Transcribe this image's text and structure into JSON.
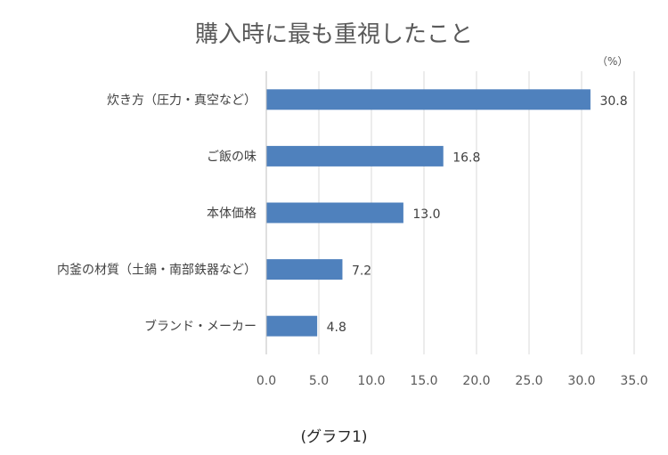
{
  "chart_data": {
    "type": "bar",
    "orientation": "horizontal",
    "title": "購入時に最も重視したこと",
    "unit_label": "（%）",
    "categories": [
      "炊き方（圧力・真空など）",
      "ご飯の味",
      "本体価格",
      "内釜の材質（土鍋・南部鉄器など）",
      "ブランド・メーカー"
    ],
    "values": [
      30.8,
      16.8,
      13.0,
      7.2,
      4.8
    ],
    "value_labels": [
      "30.8",
      "16.8",
      "13.0",
      "7.2",
      "4.8"
    ],
    "xlim": [
      0,
      35
    ],
    "x_ticks": [
      "0.0",
      "5.0",
      "10.0",
      "15.0",
      "20.0",
      "25.0",
      "30.0",
      "35.0"
    ],
    "grid": true,
    "bar_color": "#4F81BD",
    "caption": "(グラフ1)"
  }
}
